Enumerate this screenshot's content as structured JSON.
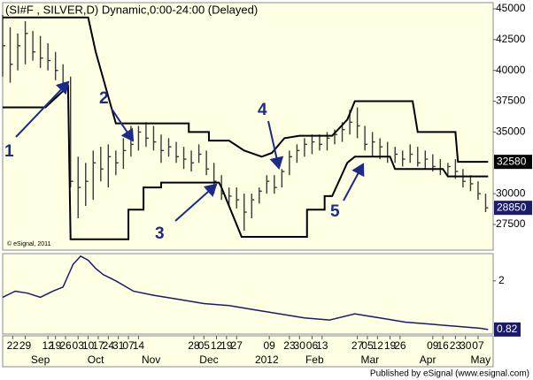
{
  "chart_data": {
    "type": "ohlc",
    "title": "(SI#F , SILVER,D) Dynamic,0:00-24:00 (Delayed)",
    "credit": "© eSignal, 2011",
    "footer": "Published by eSignal (www.esignal.com)",
    "color": "#3a3a3a",
    "channel_color": "#000000",
    "x": [
      0,
      3,
      6,
      9,
      12,
      15,
      18,
      21,
      24,
      27,
      30,
      33,
      36,
      39,
      42,
      45,
      48,
      51,
      54,
      57,
      60,
      63,
      66,
      69,
      72,
      75,
      78,
      81,
      84,
      87,
      90,
      93,
      96,
      99,
      102,
      105,
      108,
      111,
      114,
      117,
      120,
      123,
      126,
      129,
      132,
      135,
      138,
      141,
      144,
      147,
      150,
      153,
      156,
      159,
      162,
      165,
      168,
      171,
      174,
      177,
      180,
      183,
      186,
      189,
      192
    ],
    "high": [
      44500,
      43500,
      43000,
      44000,
      43200,
      42800,
      42200,
      41500,
      40500,
      39500,
      33000,
      32500,
      33500,
      33800,
      34000,
      33500,
      34500,
      35500,
      35500,
      35800,
      35500,
      34800,
      34500,
      34200,
      33800,
      33500,
      34000,
      33500,
      32500,
      31500,
      30500,
      30500,
      30000,
      30000,
      30500,
      31500,
      31500,
      32000,
      33500,
      34000,
      34500,
      34800,
      34800,
      35000,
      35200,
      35800,
      36800,
      37000,
      35500,
      35000,
      34500,
      34200,
      33800,
      33500,
      34000,
      33800,
      33500,
      33200,
      32800,
      32500,
      32800,
      32000,
      31500,
      31000,
      30000
    ],
    "low": [
      39500,
      39000,
      40000,
      40500,
      40800,
      40200,
      40000,
      39200,
      38500,
      30500,
      28000,
      29000,
      29500,
      31000,
      30500,
      31500,
      32000,
      33000,
      33500,
      33800,
      33500,
      32500,
      33000,
      32500,
      32000,
      31800,
      32500,
      31500,
      30000,
      29500,
      29000,
      28800,
      27000,
      28000,
      29200,
      30000,
      30000,
      30500,
      31500,
      32500,
      33000,
      33200,
      33500,
      33500,
      34000,
      34200,
      34800,
      34500,
      33500,
      33000,
      32800,
      32500,
      32500,
      32200,
      32500,
      32200,
      32000,
      31800,
      31500,
      31500,
      31200,
      30500,
      30200,
      29500,
      28500
    ],
    "close": [
      42000,
      40500,
      42000,
      43000,
      41500,
      41000,
      40800,
      40000,
      39000,
      31000,
      30500,
      31000,
      32500,
      32000,
      33000,
      32500,
      33500,
      34000,
      35000,
      34500,
      34200,
      33500,
      33800,
      33000,
      32800,
      32500,
      33200,
      32000,
      31000,
      30000,
      29800,
      29500,
      28500,
      29500,
      30200,
      31000,
      30500,
      31800,
      33000,
      33500,
      34000,
      34200,
      34000,
      34500,
      34800,
      35200,
      35800,
      35500,
      34000,
      34200,
      33800,
      33000,
      33200,
      32800,
      33200,
      32500,
      32800,
      32200,
      32000,
      32200,
      31800,
      31000,
      30800,
      30000,
      28850
    ],
    "upper_channel": {
      "x": [
        0,
        34,
        37,
        45,
        74,
        74,
        82,
        82,
        90,
        96,
        103,
        107,
        112,
        118,
        131,
        137,
        140,
        163,
        165,
        180,
        181,
        193
      ],
      "values": [
        44300,
        44300,
        41500,
        35700,
        35700,
        35000,
        35000,
        34300,
        34300,
        33500,
        33000,
        33300,
        34500,
        34700,
        34700,
        36000,
        37500,
        37500,
        35000,
        35000,
        32580,
        32580
      ]
    },
    "lower_channel": {
      "x": [
        0,
        17,
        26,
        27,
        50,
        50,
        56,
        56,
        63,
        63,
        86,
        87,
        95,
        121,
        121,
        128,
        128,
        131,
        137,
        140,
        154,
        156,
        175,
        177,
        193
      ],
      "values": [
        37000,
        37000,
        38700,
        26300,
        26300,
        28700,
        28700,
        30500,
        30500,
        30900,
        30900,
        30500,
        26500,
        26500,
        28700,
        28700,
        29800,
        29800,
        32500,
        33000,
        33000,
        32000,
        32000,
        31400,
        31400
      ]
    },
    "xlim": [
      0,
      195
    ],
    "ylim": [
      25420,
      45500
    ],
    "yticks": [
      27500,
      30000,
      35000,
      37500,
      40000,
      42500,
      45000
    ],
    "last_values": [
      32580,
      28850
    ],
    "last_value_colors": [
      "#000000",
      "#1c1c6e"
    ],
    "indicator": {
      "color": "#1a1a6e",
      "x": [
        0,
        5,
        10,
        15,
        20,
        24,
        28,
        31,
        34,
        37,
        40,
        45,
        52,
        60,
        70,
        80,
        90,
        100,
        110,
        120,
        130,
        140,
        145,
        150,
        160,
        170,
        180,
        190,
        193
      ],
      "values": [
        1.6,
        1.75,
        1.7,
        1.6,
        1.75,
        1.85,
        2.4,
        2.6,
        2.5,
        2.3,
        2.15,
        2.0,
        1.75,
        1.65,
        1.55,
        1.45,
        1.4,
        1.3,
        1.2,
        1.1,
        1.05,
        1.2,
        1.15,
        1.1,
        1.0,
        0.95,
        0.9,
        0.85,
        0.82
      ],
      "ylim": [
        0.71,
        2.66
      ],
      "yticks": [
        2
      ],
      "last_value": 0.82
    },
    "day_ticks": [
      {
        "value": 4,
        "label": "22"
      },
      {
        "value": 9,
        "label": "29"
      },
      {
        "value": 18,
        "label": "12"
      },
      {
        "value": 21,
        "label": "19"
      },
      {
        "value": 25,
        "label": "26"
      },
      {
        "value": 30,
        "label": "03"
      },
      {
        "value": 34,
        "label": "10"
      },
      {
        "value": 38,
        "label": "17"
      },
      {
        "value": 42,
        "label": "24"
      },
      {
        "value": 46,
        "label": "31"
      },
      {
        "value": 50,
        "label": "07"
      },
      {
        "value": 54,
        "label": "14"
      },
      {
        "value": 76,
        "label": "28"
      },
      {
        "value": 80,
        "label": "05"
      },
      {
        "value": 85,
        "label": "12"
      },
      {
        "value": 89,
        "label": "19"
      },
      {
        "value": 93,
        "label": "27"
      },
      {
        "value": 106,
        "label": "09"
      },
      {
        "value": 114,
        "label": "23"
      },
      {
        "value": 118,
        "label": "30"
      },
      {
        "value": 123,
        "label": "06"
      },
      {
        "value": 127,
        "label": "13"
      },
      {
        "value": 141,
        "label": "27"
      },
      {
        "value": 145,
        "label": "05"
      },
      {
        "value": 149,
        "label": "12"
      },
      {
        "value": 154,
        "label": "19"
      },
      {
        "value": 158,
        "label": "26"
      },
      {
        "value": 171,
        "label": "09"
      },
      {
        "value": 175,
        "label": "16"
      },
      {
        "value": 180,
        "label": "23"
      },
      {
        "value": 184,
        "label": "30"
      },
      {
        "value": 189,
        "label": "07"
      }
    ],
    "month_ticks": [
      {
        "value": 15,
        "label": "Sep"
      },
      {
        "value": 37,
        "label": "Oct"
      },
      {
        "value": 59,
        "label": "Nov"
      },
      {
        "value": 82,
        "label": "Dec"
      },
      {
        "value": 105,
        "label": "2012"
      },
      {
        "value": 124,
        "label": "Feb"
      },
      {
        "value": 146,
        "label": "Mar"
      },
      {
        "value": 169,
        "label": "Apr"
      },
      {
        "value": 190,
        "label": "May"
      }
    ],
    "annotations": [
      "1",
      "2",
      "3",
      "4",
      "5"
    ]
  }
}
